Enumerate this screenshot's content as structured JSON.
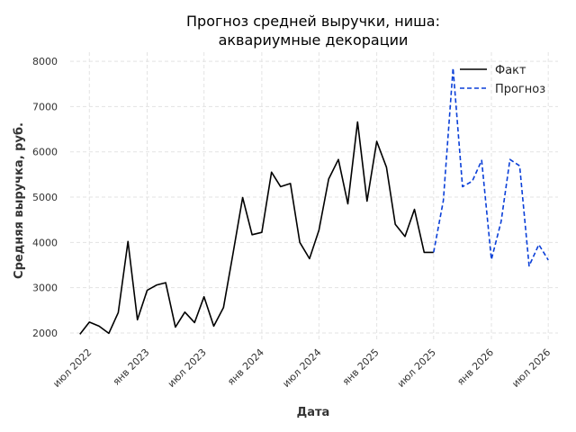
{
  "chart_data": {
    "type": "line",
    "title_lines": [
      "Прогноз средней выручки, ниша:",
      "аквариумные декорации"
    ],
    "xlabel": "Дата",
    "ylabel": "Средняя выручка, руб.",
    "ylim": [
      1800,
      8200
    ],
    "yticks": [
      2000,
      3000,
      4000,
      5000,
      6000,
      7000,
      8000
    ],
    "xlim": [
      "2022-05-01",
      "2026-08-01"
    ],
    "xticks": [
      {
        "date": "2022-07-01",
        "label": "июл 2022"
      },
      {
        "date": "2023-01-01",
        "label": "янв 2023"
      },
      {
        "date": "2023-07-01",
        "label": "июл 2023"
      },
      {
        "date": "2024-01-01",
        "label": "янв 2024"
      },
      {
        "date": "2024-07-01",
        "label": "июл 2024"
      },
      {
        "date": "2025-01-01",
        "label": "янв 2025"
      },
      {
        "date": "2025-07-01",
        "label": "июл 2025"
      },
      {
        "date": "2026-01-01",
        "label": "янв 2026"
      },
      {
        "date": "2026-07-01",
        "label": "июл 2026"
      }
    ],
    "grid": true,
    "legend_position": "top-right",
    "series": [
      {
        "name": "Факт",
        "color": "#000000",
        "style": "solid",
        "x": [
          "2022-06-01",
          "2022-07-01",
          "2022-08-01",
          "2022-09-01",
          "2022-10-01",
          "2022-11-01",
          "2022-12-01",
          "2023-01-01",
          "2023-02-01",
          "2023-03-01",
          "2023-04-01",
          "2023-05-01",
          "2023-06-01",
          "2023-07-01",
          "2023-08-01",
          "2023-09-01",
          "2023-10-01",
          "2023-11-01",
          "2023-12-01",
          "2024-01-01",
          "2024-02-01",
          "2024-03-01",
          "2024-04-01",
          "2024-05-01",
          "2024-06-01",
          "2024-07-01",
          "2024-08-01",
          "2024-09-01",
          "2024-10-01",
          "2024-11-01",
          "2024-12-01",
          "2025-01-01",
          "2025-02-01",
          "2025-03-01",
          "2025-04-01",
          "2025-05-01",
          "2025-06-01",
          "2025-07-01"
        ],
        "values": [
          1970,
          2240,
          2150,
          1990,
          2450,
          4020,
          2290,
          2940,
          3060,
          3110,
          2130,
          2460,
          2230,
          2800,
          2150,
          2560,
          3740,
          4990,
          4170,
          4220,
          5550,
          5230,
          5300,
          4000,
          3640,
          4270,
          5400,
          5830,
          4850,
          6660,
          4910,
          6230,
          5660,
          4400,
          4130,
          4730,
          3780,
          3780
        ]
      },
      {
        "name": "Прогноз",
        "color": "#0a3fd8",
        "style": "dashed",
        "x": [
          "2025-07-01",
          "2025-08-01",
          "2025-09-01",
          "2025-10-01",
          "2025-11-01",
          "2025-12-01",
          "2026-01-01",
          "2026-02-01",
          "2026-03-01",
          "2026-04-01",
          "2026-05-01",
          "2026-06-01",
          "2026-07-01"
        ],
        "values": [
          3780,
          4920,
          7850,
          5230,
          5350,
          5810,
          3620,
          4460,
          5830,
          5690,
          3480,
          3950,
          3610
        ]
      }
    ]
  }
}
